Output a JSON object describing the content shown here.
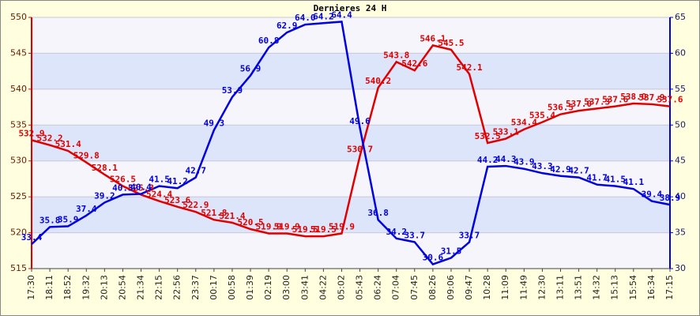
{
  "chart_data": {
    "type": "line",
    "title": "Dernieres 24 H",
    "categories": [
      "17:30",
      "18:11",
      "18:52",
      "19:32",
      "20:13",
      "20:54",
      "21:34",
      "22:15",
      "22:56",
      "23:37",
      "00:17",
      "00:58",
      "01:39",
      "02:19",
      "03:00",
      "03:41",
      "04:22",
      "05:02",
      "05:43",
      "06:24",
      "07:04",
      "07:45",
      "08:26",
      "09:06",
      "09:47",
      "10:28",
      "11:09",
      "11:49",
      "12:30",
      "13:11",
      "13:51",
      "14:32",
      "15:13",
      "15:54",
      "16:34",
      "17:15"
    ],
    "series": [
      {
        "color": "#e00000",
        "values": [
          532.9,
          532.2,
          531.4,
          529.8,
          528.1,
          526.5,
          525.3,
          524.4,
          523.6,
          522.9,
          521.8,
          521.4,
          520.5,
          519.9,
          519.9,
          519.5,
          519.5,
          519.9,
          530.7,
          540.2,
          543.8,
          542.6,
          546.1,
          545.5,
          542.1,
          532.5,
          533.1,
          534.4,
          535.4,
          536.5,
          537,
          537.3,
          537.6,
          538,
          537.9,
          537.6
        ],
        "value_labels": [
          "532.9",
          "532.2",
          "531.4",
          "529.8",
          "528.1",
          "526.5",
          "525.3",
          "524.4",
          "523.6",
          "522.9",
          "521.8",
          "521.4",
          "520.5",
          "519.9",
          "519.9",
          "519.5",
          "519.5",
          "519.9",
          "530.7",
          "540.2",
          "543.8",
          "542.6",
          "546.1",
          "545.5",
          "542.1",
          "532.5",
          "533.1",
          "534.4",
          "535.4",
          "536.5",
          "537.0",
          "537.3",
          "537.6",
          "538.0",
          "537.9",
          "537.6"
        ]
      },
      {
        "color": "#0000e0",
        "axis": "y2",
        "values": [
          33.4,
          35.8,
          35.9,
          37.4,
          39.2,
          40.3,
          40.4,
          41.5,
          41.2,
          42.7,
          49.3,
          53.9,
          56.9,
          60.8,
          62.9,
          64,
          64.2,
          64.4,
          49.6,
          36.8,
          34.2,
          33.7,
          30.6,
          31.5,
          33.7,
          44.2,
          44.3,
          43.9,
          43.3,
          42.9,
          42.7,
          41.7,
          41.5,
          41.1,
          39.4,
          38.9
        ],
        "value_labels": [
          "33.4",
          "35.8",
          "35.9",
          "37.4",
          "39.2",
          "40.3",
          "40.4",
          "41.5",
          "41.2",
          "42.7",
          "49.3",
          "53.9",
          "56.9",
          "60.8",
          "62.9",
          "64.0",
          "64.2",
          "64.4",
          "49.6",
          "36.8",
          "34.2",
          "33.7",
          "30.6",
          "31.5",
          "33.7",
          "44.2",
          "44.3",
          "43.9",
          "43.3",
          "42.9",
          "42.7",
          "41.7",
          "41.5",
          "41.1",
          "39.4",
          "38.9"
        ]
      }
    ],
    "ylim": [
      515,
      550
    ],
    "yticks": [
      515,
      520,
      525,
      530,
      535,
      540,
      545,
      550
    ],
    "y2lim": [
      30,
      65
    ],
    "y2ticks": [
      30,
      35,
      40,
      45,
      50,
      55,
      60,
      65
    ],
    "grid": true
  }
}
